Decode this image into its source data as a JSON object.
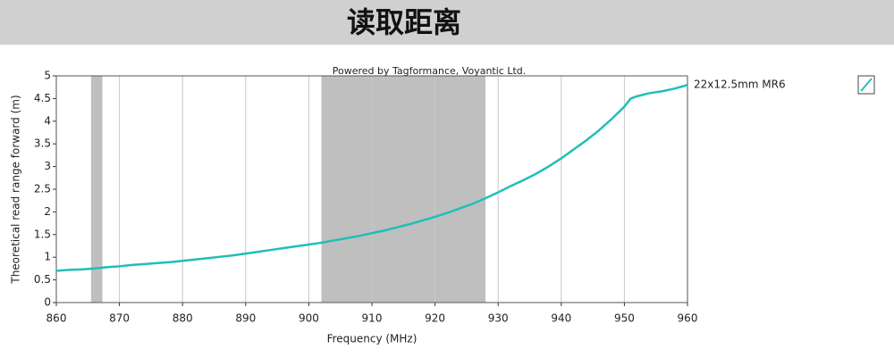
{
  "title": "读取距离",
  "chart_data": {
    "type": "line",
    "annotation": "Powered by Tagformance, Voyantic Ltd.",
    "x_label": "Frequency (MHz)",
    "y_label": "Theoretical read range forward (m)",
    "x": [
      860,
      862,
      864,
      866,
      868,
      870,
      872,
      874,
      876,
      878,
      880,
      882,
      884,
      886,
      888,
      890,
      892,
      894,
      896,
      898,
      900,
      902,
      904,
      906,
      908,
      910,
      912,
      914,
      916,
      918,
      920,
      922,
      924,
      926,
      928,
      930,
      932,
      934,
      936,
      938,
      940,
      942,
      944,
      946,
      948,
      950,
      951,
      952,
      954,
      956,
      958,
      960
    ],
    "series": [
      {
        "name": "22x12.5mm MR6",
        "color": "#1fbfb8",
        "values": [
          0.7,
          0.72,
          0.73,
          0.75,
          0.78,
          0.8,
          0.83,
          0.85,
          0.87,
          0.89,
          0.92,
          0.95,
          0.98,
          1.01,
          1.04,
          1.08,
          1.12,
          1.16,
          1.2,
          1.24,
          1.28,
          1.32,
          1.37,
          1.42,
          1.47,
          1.53,
          1.59,
          1.66,
          1.73,
          1.81,
          1.89,
          1.98,
          2.08,
          2.18,
          2.3,
          2.43,
          2.57,
          2.7,
          2.84,
          3.0,
          3.18,
          3.38,
          3.58,
          3.8,
          4.05,
          4.32,
          4.5,
          4.55,
          4.62,
          4.66,
          4.72,
          4.8
        ]
      }
    ],
    "shaded_ranges": [
      [
        865.5,
        867.3
      ],
      [
        902,
        928
      ]
    ],
    "shade_color": "#bfbfbf",
    "xlim": [
      860,
      960
    ],
    "xticks": [
      860,
      870,
      880,
      890,
      900,
      910,
      920,
      930,
      940,
      950,
      960
    ],
    "ylim": [
      0,
      5
    ],
    "yticks": [
      0,
      0.5,
      1,
      1.5,
      2,
      2.5,
      3,
      3.5,
      4,
      4.5,
      5
    ],
    "grid": "x"
  }
}
